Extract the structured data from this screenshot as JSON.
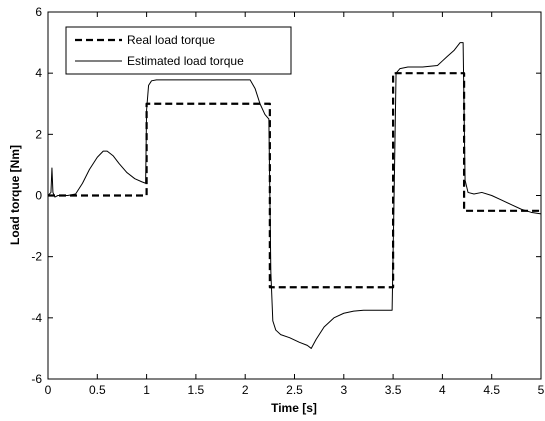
{
  "chart_data": {
    "type": "line",
    "xlabel": "Time [s]",
    "ylabel": "Load torque [Nm]",
    "xlim": [
      0,
      5
    ],
    "ylim": [
      -6,
      6
    ],
    "xticks": [
      "0",
      "0.5",
      "1",
      "1.5",
      "2",
      "2.5",
      "3",
      "3.5",
      "4",
      "4.5",
      "5"
    ],
    "yticks": [
      "-6",
      "-4",
      "-2",
      "0",
      "2",
      "4",
      "6"
    ],
    "grid": false,
    "legend_position": "top-left",
    "series": [
      {
        "name": "Real load torque",
        "style": "dashed",
        "color": "#000000",
        "points": [
          [
            0,
            0
          ],
          [
            1.0,
            0
          ],
          [
            1.0,
            3
          ],
          [
            2.25,
            3
          ],
          [
            2.25,
            -3
          ],
          [
            3.5,
            -3
          ],
          [
            3.5,
            4
          ],
          [
            4.22,
            4
          ],
          [
            4.22,
            -0.5
          ],
          [
            5.0,
            -0.5
          ]
        ]
      },
      {
        "name": "Estimated load torque",
        "style": "solid",
        "color": "#000000",
        "points": [
          [
            0.0,
            0.0
          ],
          [
            0.03,
            0.1
          ],
          [
            0.04,
            0.9
          ],
          [
            0.05,
            0.1
          ],
          [
            0.07,
            -0.05
          ],
          [
            0.1,
            0.0
          ],
          [
            0.2,
            0.0
          ],
          [
            0.28,
            0.05
          ],
          [
            0.35,
            0.4
          ],
          [
            0.42,
            0.85
          ],
          [
            0.5,
            1.25
          ],
          [
            0.56,
            1.45
          ],
          [
            0.6,
            1.45
          ],
          [
            0.66,
            1.3
          ],
          [
            0.72,
            1.05
          ],
          [
            0.8,
            0.75
          ],
          [
            0.88,
            0.55
          ],
          [
            0.95,
            0.45
          ],
          [
            0.99,
            0.4
          ],
          [
            1.0,
            2.8
          ],
          [
            1.02,
            3.6
          ],
          [
            1.05,
            3.75
          ],
          [
            1.1,
            3.78
          ],
          [
            1.5,
            3.78
          ],
          [
            1.9,
            3.78
          ],
          [
            2.05,
            3.78
          ],
          [
            2.1,
            3.5
          ],
          [
            2.15,
            3.0
          ],
          [
            2.2,
            2.65
          ],
          [
            2.24,
            2.5
          ],
          [
            2.26,
            -2.5
          ],
          [
            2.28,
            -4.1
          ],
          [
            2.31,
            -4.4
          ],
          [
            2.36,
            -4.55
          ],
          [
            2.45,
            -4.65
          ],
          [
            2.55,
            -4.8
          ],
          [
            2.63,
            -4.9
          ],
          [
            2.67,
            -5.0
          ],
          [
            2.72,
            -4.7
          ],
          [
            2.8,
            -4.3
          ],
          [
            2.9,
            -4.0
          ],
          [
            3.0,
            -3.85
          ],
          [
            3.1,
            -3.78
          ],
          [
            3.2,
            -3.75
          ],
          [
            3.49,
            -3.75
          ],
          [
            3.51,
            0.0
          ],
          [
            3.53,
            4.0
          ],
          [
            3.57,
            4.15
          ],
          [
            3.65,
            4.2
          ],
          [
            3.8,
            4.2
          ],
          [
            3.95,
            4.25
          ],
          [
            4.0,
            4.4
          ],
          [
            4.05,
            4.55
          ],
          [
            4.12,
            4.75
          ],
          [
            4.18,
            5.0
          ],
          [
            4.21,
            5.0
          ],
          [
            4.23,
            0.5
          ],
          [
            4.26,
            0.1
          ],
          [
            4.32,
            0.05
          ],
          [
            4.4,
            0.1
          ],
          [
            4.5,
            0.0
          ],
          [
            4.6,
            -0.15
          ],
          [
            4.7,
            -0.3
          ],
          [
            4.8,
            -0.45
          ],
          [
            4.9,
            -0.55
          ],
          [
            5.0,
            -0.6
          ]
        ]
      }
    ]
  }
}
